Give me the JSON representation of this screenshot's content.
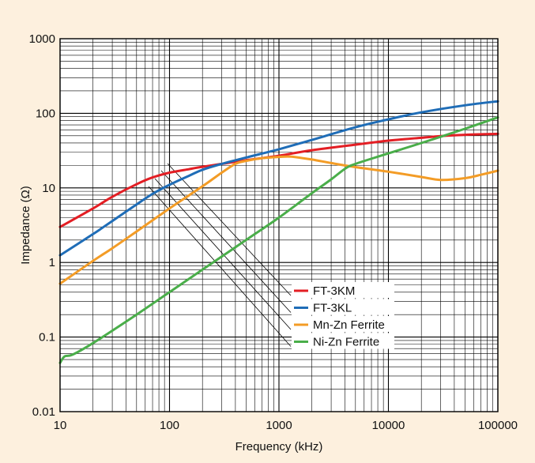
{
  "colors": {
    "background": "#fdf0de",
    "plot_background": "#ffffff",
    "grid": "#000000"
  },
  "chart_data": {
    "type": "line",
    "title": "",
    "xlabel": "Frequency (kHz)",
    "ylabel": "Impedance (Ω)",
    "x_scale": "log",
    "y_scale": "log",
    "xlim": [
      10,
      100000
    ],
    "ylim": [
      0.01,
      1000
    ],
    "grid": true,
    "legend_position": "lower-right",
    "x_ticks": [
      "10",
      "100",
      "1000",
      "10000",
      "100000"
    ],
    "y_ticks": [
      "0.01",
      "0.1",
      "1",
      "10",
      "100",
      "1000"
    ],
    "series": [
      {
        "name": "FT-3KM",
        "color": "#e31e24",
        "points": [
          [
            10,
            3.0
          ],
          [
            20,
            5.3
          ],
          [
            30,
            7.6
          ],
          [
            50,
            11.2
          ],
          [
            70,
            13.8
          ],
          [
            100,
            16
          ],
          [
            150,
            17.8
          ],
          [
            200,
            19.2
          ],
          [
            300,
            21
          ],
          [
            500,
            23.5
          ],
          [
            1000,
            27
          ],
          [
            2000,
            32
          ],
          [
            5000,
            38
          ],
          [
            10000,
            43
          ],
          [
            20000,
            47
          ],
          [
            30000,
            49.5
          ],
          [
            50000,
            51.5
          ],
          [
            100000,
            53
          ]
        ]
      },
      {
        "name": "FT-3KL",
        "color": "#1f6db7",
        "points": [
          [
            10,
            1.25
          ],
          [
            20,
            2.4
          ],
          [
            30,
            3.6
          ],
          [
            50,
            6.0
          ],
          [
            70,
            8.3
          ],
          [
            100,
            11
          ],
          [
            150,
            14.5
          ],
          [
            200,
            17.5
          ],
          [
            300,
            21
          ],
          [
            500,
            25.5
          ],
          [
            1000,
            33
          ],
          [
            2000,
            44
          ],
          [
            5000,
            65
          ],
          [
            10000,
            83
          ],
          [
            20000,
            103
          ],
          [
            50000,
            128
          ],
          [
            100000,
            145
          ]
        ]
      },
      {
        "name": "Mn-Zn Ferrite",
        "color": "#f39c26",
        "points": [
          [
            10,
            0.52
          ],
          [
            20,
            1.05
          ],
          [
            30,
            1.55
          ],
          [
            50,
            2.6
          ],
          [
            100,
            5.3
          ],
          [
            200,
            10.5
          ],
          [
            300,
            16
          ],
          [
            400,
            21
          ],
          [
            500,
            23
          ],
          [
            700,
            25
          ],
          [
            1000,
            26
          ],
          [
            1300,
            26.2
          ],
          [
            2000,
            24
          ],
          [
            3000,
            21.5
          ],
          [
            5000,
            19
          ],
          [
            10000,
            16.5
          ],
          [
            20000,
            14
          ],
          [
            30000,
            12.8
          ],
          [
            50000,
            13.5
          ],
          [
            70000,
            15
          ],
          [
            100000,
            17
          ]
        ]
      },
      {
        "name": "Ni-Zn Ferrite",
        "color": "#4aae4a",
        "points": [
          [
            10,
            0.045
          ],
          [
            11,
            0.055
          ],
          [
            13,
            0.058
          ],
          [
            20,
            0.083
          ],
          [
            50,
            0.2
          ],
          [
            100,
            0.4
          ],
          [
            200,
            0.8
          ],
          [
            500,
            2.0
          ],
          [
            1000,
            4.0
          ],
          [
            2000,
            8.5
          ],
          [
            3000,
            13
          ],
          [
            4000,
            18
          ],
          [
            5000,
            21
          ],
          [
            10000,
            29
          ],
          [
            20000,
            40
          ],
          [
            50000,
            62
          ],
          [
            100000,
            88
          ]
        ]
      }
    ]
  }
}
